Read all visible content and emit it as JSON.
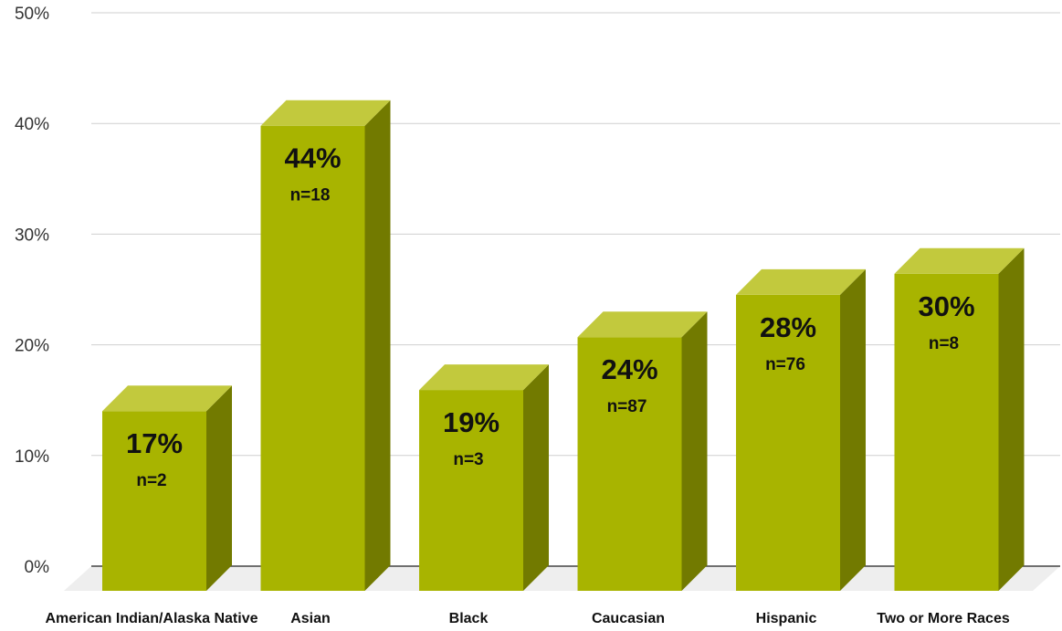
{
  "chart_data": {
    "type": "bar",
    "categories": [
      "American Indian/Alaska Native",
      "Asian",
      "Black",
      "Caucasian",
      "Hispanic",
      "Two or More Races"
    ],
    "values": [
      17,
      44,
      19,
      24,
      28,
      30
    ],
    "value_labels": [
      "17%",
      "44%",
      "19%",
      "24%",
      "28%",
      "30%"
    ],
    "n_labels": [
      "n=2",
      "n=18",
      "n=3",
      "n=87",
      "n=76",
      "n=8"
    ],
    "y_ticks": [
      0,
      10,
      20,
      30,
      40,
      50
    ],
    "y_tick_labels": [
      "0%",
      "10%",
      "20%",
      "30%",
      "40%",
      "50%"
    ],
    "ylim": [
      0,
      50
    ],
    "grid": true,
    "style": "3d-bar",
    "colors": {
      "bar_front": "#a8b400",
      "bar_top": "#c2c93d",
      "bar_side": "#727a00",
      "floor": "#eeeeee",
      "gridline": "#cfcfcf",
      "axis": "#444444"
    }
  }
}
